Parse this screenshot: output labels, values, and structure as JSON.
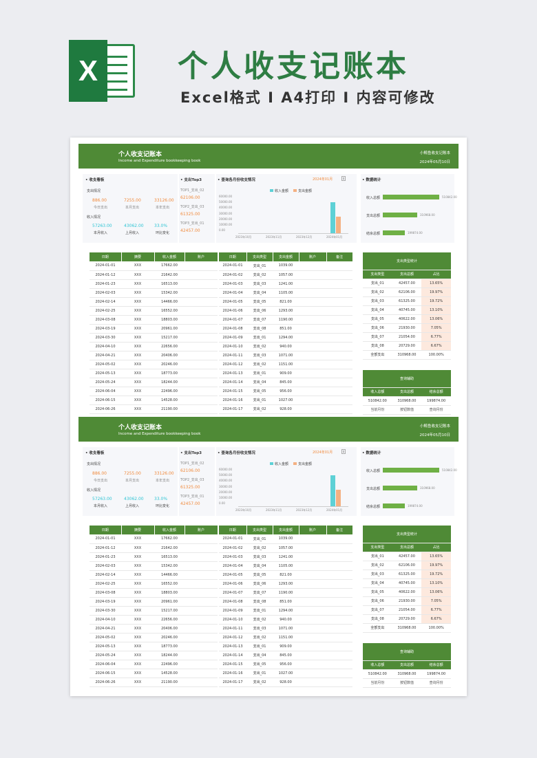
{
  "promo": {
    "title": "个人收支记账本",
    "subtitle": "Excel格式 I A4打印 I 内容可修改",
    "logo_letter": "X"
  },
  "header": {
    "title": "个人收支记账本",
    "subtitle": "Income and Expenditure bookkeeping book",
    "brand": "小鲸鱼收支记账本",
    "date": "2024年05月10日"
  },
  "dashboard": {
    "title": "• 收支看板",
    "expense_label": "支出情况",
    "income_label": "收入情况",
    "expense_vals": [
      "886.00",
      "7255.00",
      "33126.00"
    ],
    "expense_caps": [
      "今日支出",
      "本月支出",
      "本年支出"
    ],
    "income_vals": [
      "57263.00",
      "43062.00",
      "33.0%"
    ],
    "income_caps": [
      "本月收入",
      "上月收入",
      "环比变化"
    ]
  },
  "top3": {
    "title": "• 支出Top3",
    "items": [
      {
        "label": "TOP1_支出_02",
        "value": "62106.00"
      },
      {
        "label": "TOP2_支出_03",
        "value": "61325.00"
      },
      {
        "label": "TOP3_支出_01",
        "value": "42457.00"
      }
    ]
  },
  "monthly": {
    "title": "• 查询各月份收支情况",
    "query": "2024年01月",
    "legend_income": "收入金额",
    "legend_expense": "支出金额",
    "yticks": [
      "60000.00",
      "50000.00",
      "40000.00",
      "30000.00",
      "20000.00",
      "10000.00",
      "0.00"
    ],
    "xticks": [
      "2023年10月",
      "2023年11月",
      "2023年12月",
      "2024年01月"
    ]
  },
  "stats": {
    "title": "• 数据统计",
    "rows": [
      {
        "label": "收入总额",
        "value": "510842.00",
        "ratio": 1
      },
      {
        "label": "支出总额",
        "value": "310968.00",
        "ratio": 0.609
      },
      {
        "label": "结余总额",
        "value": "199874.00",
        "ratio": 0.391
      }
    ]
  },
  "income_table": {
    "headers": [
      "日期",
      "摘要",
      "收入金额",
      "账户"
    ],
    "rows": [
      [
        "2024-01-01",
        "XXX",
        "17662.00",
        ""
      ],
      [
        "2024-01-12",
        "XXX",
        "21642.00",
        ""
      ],
      [
        "2024-01-23",
        "XXX",
        "16513.00",
        ""
      ],
      [
        "2024-02-03",
        "XXX",
        "15342.00",
        ""
      ],
      [
        "2024-02-14",
        "XXX",
        "14466.00",
        ""
      ],
      [
        "2024-02-25",
        "XXX",
        "16552.00",
        ""
      ],
      [
        "2024-03-08",
        "XXX",
        "18803.00",
        ""
      ],
      [
        "2024-03-19",
        "XXX",
        "20961.00",
        ""
      ],
      [
        "2024-03-30",
        "XXX",
        "15217.00",
        ""
      ],
      [
        "2024-04-10",
        "XXX",
        "22656.00",
        ""
      ],
      [
        "2024-04-21",
        "XXX",
        "20406.00",
        ""
      ],
      [
        "2024-05-02",
        "XXX",
        "20246.00",
        ""
      ],
      [
        "2024-05-13",
        "XXX",
        "18773.00",
        ""
      ],
      [
        "2024-05-24",
        "XXX",
        "18244.00",
        ""
      ],
      [
        "2024-06-04",
        "XXX",
        "22496.00",
        ""
      ],
      [
        "2024-06-15",
        "XXX",
        "14528.00",
        ""
      ],
      [
        "2024-06-26",
        "XXX",
        "21190.00",
        ""
      ]
    ]
  },
  "expense_table": {
    "headers": [
      "日期",
      "支出类型",
      "支出金额",
      "账户",
      "备注"
    ],
    "rows": [
      [
        "2024-01-01",
        "支出_01",
        "1039.00",
        "",
        ""
      ],
      [
        "2024-01-02",
        "支出_02",
        "1057.00",
        "",
        ""
      ],
      [
        "2024-01-03",
        "支出_03",
        "1241.00",
        "",
        ""
      ],
      [
        "2024-01-04",
        "支出_04",
        "1105.00",
        "",
        ""
      ],
      [
        "2024-01-05",
        "支出_05",
        "821.00",
        "",
        ""
      ],
      [
        "2024-01-06",
        "支出_06",
        "1293.00",
        "",
        ""
      ],
      [
        "2024-01-07",
        "支出_07",
        "1190.00",
        "",
        ""
      ],
      [
        "2024-01-08",
        "支出_08",
        "851.00",
        "",
        ""
      ],
      [
        "2024-01-09",
        "支出_01",
        "1294.00",
        "",
        ""
      ],
      [
        "2024-01-10",
        "支出_02",
        "940.00",
        "",
        ""
      ],
      [
        "2024-01-11",
        "支出_03",
        "1071.00",
        "",
        ""
      ],
      [
        "2024-01-12",
        "支出_02",
        "1151.00",
        "",
        ""
      ],
      [
        "2024-01-13",
        "支出_01",
        "909.00",
        "",
        ""
      ],
      [
        "2024-01-14",
        "支出_04",
        "845.00",
        "",
        ""
      ],
      [
        "2024-01-15",
        "支出_05",
        "956.00",
        "",
        ""
      ],
      [
        "2024-01-16",
        "支出_01",
        "1027.00",
        "",
        ""
      ],
      [
        "2024-01-17",
        "支出_02",
        "928.00",
        "",
        ""
      ]
    ]
  },
  "category_stats": {
    "title": "支出类型统计",
    "headers": [
      "支出类型",
      "支出总额",
      "占比"
    ],
    "rows": [
      [
        "支出_01",
        "42457.00",
        "13.65%"
      ],
      [
        "支出_02",
        "62106.00",
        "19.97%"
      ],
      [
        "支出_03",
        "61325.00",
        "19.72%"
      ],
      [
        "支出_04",
        "40745.00",
        "13.10%"
      ],
      [
        "支出_05",
        "40622.00",
        "13.06%"
      ],
      [
        "支出_06",
        "21930.00",
        "7.05%"
      ],
      [
        "支出_07",
        "21054.00",
        "6.77%"
      ],
      [
        "支出_08",
        "20729.00",
        "6.67%"
      ],
      [
        "全部支出",
        "310968.00",
        "100.00%"
      ]
    ]
  },
  "query_helper": {
    "title": "查询辅助",
    "headers": [
      "收入总额",
      "支出总额",
      "结余总额"
    ],
    "values": [
      "510842.00",
      "310968.00",
      "199874.00"
    ],
    "captions": [
      "当前月份",
      "按钮数值",
      "查询月份"
    ]
  },
  "colors": {
    "green": "#4f8a36",
    "orange": "#f08a3c",
    "cyan": "#2fc4d4"
  }
}
